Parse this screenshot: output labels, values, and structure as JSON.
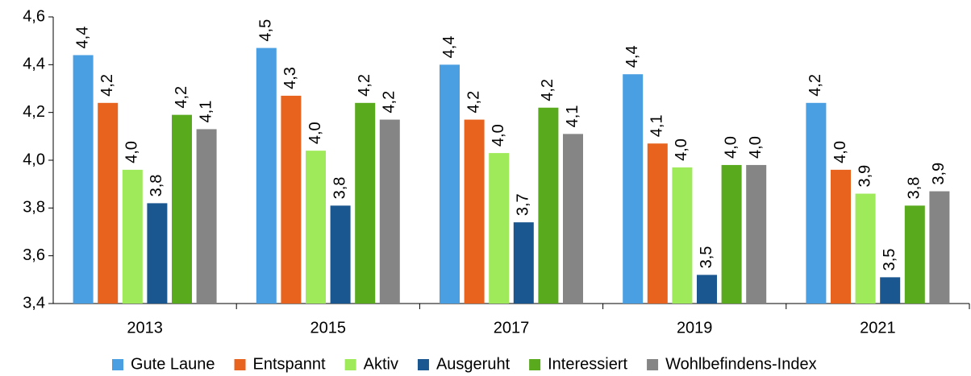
{
  "chart_data": {
    "type": "bar",
    "categories": [
      "2013",
      "2015",
      "2017",
      "2019",
      "2021"
    ],
    "series": [
      {
        "name": "Gute Laune",
        "color": "#4a9fe3",
        "values": [
          4.44,
          4.47,
          4.4,
          4.36,
          4.24
        ],
        "value_labels": [
          "4,4",
          "4,5",
          "4,4",
          "4,4",
          "4,2"
        ]
      },
      {
        "name": "Entspannt",
        "color": "#e8641e",
        "values": [
          4.24,
          4.27,
          4.17,
          4.07,
          3.96
        ],
        "value_labels": [
          "4,2",
          "4,3",
          "4,2",
          "4,1",
          "4,0"
        ]
      },
      {
        "name": "Aktiv",
        "color": "#9fea5a",
        "values": [
          3.96,
          4.04,
          4.03,
          3.97,
          3.86
        ],
        "value_labels": [
          "4,0",
          "4,0",
          "4,0",
          "4,0",
          "3,9"
        ]
      },
      {
        "name": "Ausgeruht",
        "color": "#1a5690",
        "values": [
          3.82,
          3.81,
          3.74,
          3.52,
          3.51
        ],
        "value_labels": [
          "3,8",
          "3,8",
          "3,7",
          "3,5",
          "3,5"
        ]
      },
      {
        "name": "Interessiert",
        "color": "#5aaa1e",
        "values": [
          4.19,
          4.24,
          4.22,
          3.98,
          3.81
        ],
        "value_labels": [
          "4,2",
          "4,2",
          "4,2",
          "4,0",
          "3,8"
        ]
      },
      {
        "name": "Wohlbefindens-Index",
        "color": "#858585",
        "values": [
          4.13,
          4.17,
          4.11,
          3.98,
          3.87
        ],
        "value_labels": [
          "4,1",
          "4,2",
          "4,1",
          "4,0",
          "3,9"
        ]
      }
    ],
    "ylim": [
      3.4,
      4.6
    ],
    "yticks": [
      {
        "value": 3.4,
        "label": "3,4"
      },
      {
        "value": 3.6,
        "label": "3,6"
      },
      {
        "value": 3.8,
        "label": "3,8"
      },
      {
        "value": 4.0,
        "label": "4,0"
      },
      {
        "value": 4.2,
        "label": "4,2"
      },
      {
        "value": 4.4,
        "label": "4,4"
      },
      {
        "value": 4.6,
        "label": "4,6"
      }
    ],
    "grid": false,
    "legend": "bottom"
  }
}
